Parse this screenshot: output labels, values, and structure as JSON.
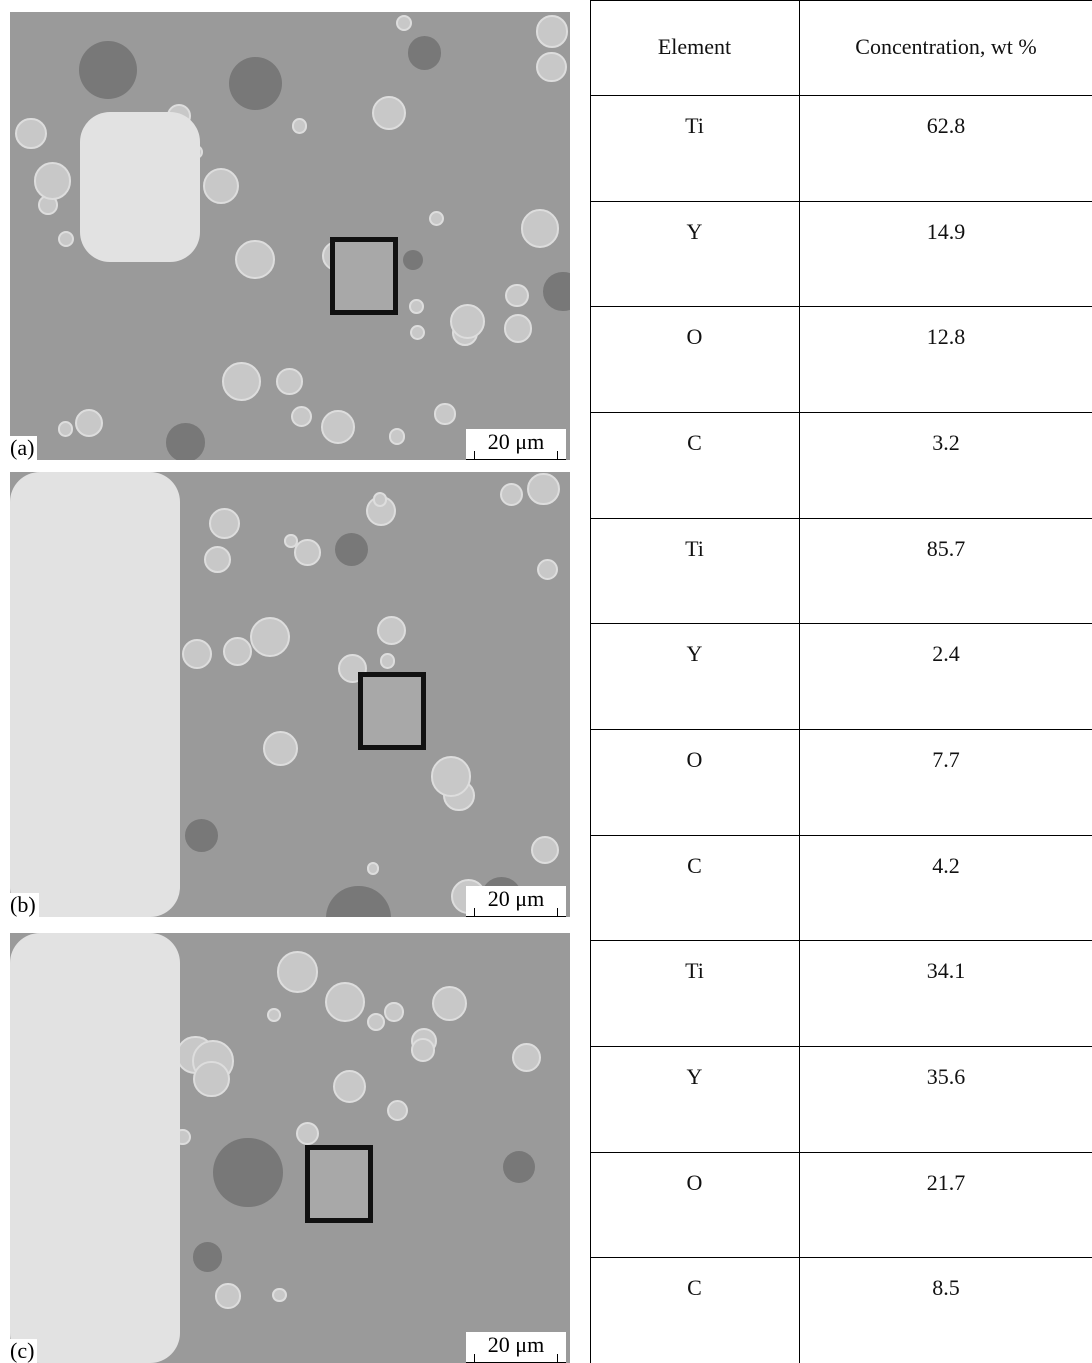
{
  "figure": {
    "panels": [
      {
        "label": "(a)",
        "scale_bar": "20 μm"
      },
      {
        "label": "(b)",
        "scale_bar": "20 μm"
      },
      {
        "label": "(c)",
        "scale_bar": "20 μm"
      }
    ]
  },
  "table": {
    "header": [
      "Element",
      "Concentration, wt %"
    ],
    "rows": [
      [
        "Ti",
        62.8
      ],
      [
        "Y",
        14.9
      ],
      [
        "O",
        12.8
      ],
      [
        "C",
        3.2
      ],
      [
        "Ti",
        85.7
      ],
      [
        "Y",
        2.4
      ],
      [
        "O",
        7.7
      ],
      [
        "C",
        4.2
      ],
      [
        "Ti",
        34.1
      ],
      [
        "Y",
        35.6
      ],
      [
        "O",
        21.7
      ],
      [
        "C",
        8.5
      ]
    ]
  }
}
